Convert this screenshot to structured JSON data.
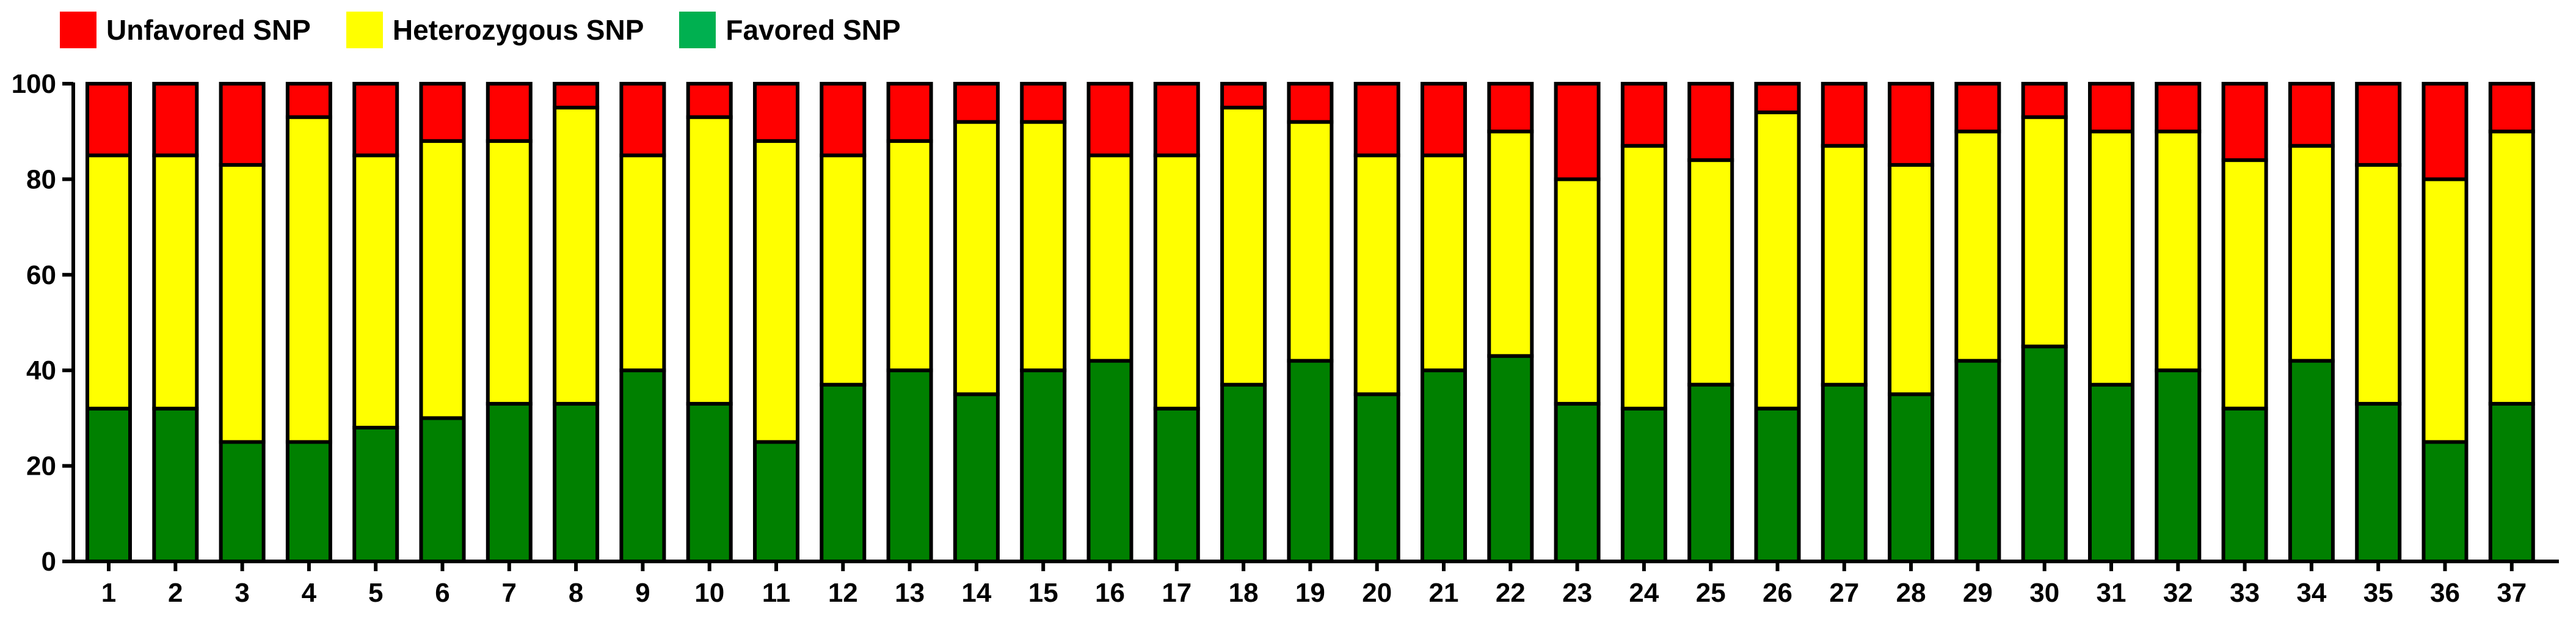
{
  "colors": {
    "unfavored": "#ff0000",
    "heterozygous": "#ffff00",
    "favored": "#008000",
    "favored_legend": "#00b050",
    "axis": "#000000"
  },
  "legend": {
    "items": [
      {
        "label": "Unfavored SNP",
        "color": "#ff0000"
      },
      {
        "label": "Heterozygous SNP",
        "color": "#ffff00"
      },
      {
        "label": "Favored SNP",
        "color": "#00b050"
      }
    ],
    "placement": "top-left"
  },
  "chart_data": {
    "type": "bar",
    "stacked": true,
    "title": "",
    "xlabel": "",
    "ylabel": "",
    "ylim": [
      0,
      100
    ],
    "yticks": [
      0,
      20,
      40,
      60,
      80,
      100
    ],
    "grid": false,
    "categories": [
      "1",
      "2",
      "3",
      "4",
      "5",
      "6",
      "7",
      "8",
      "9",
      "10",
      "11",
      "12",
      "13",
      "14",
      "15",
      "16",
      "17",
      "18",
      "19",
      "20",
      "21",
      "22",
      "23",
      "24",
      "25",
      "26",
      "27",
      "28",
      "29",
      "30",
      "31",
      "32",
      "33",
      "34",
      "35",
      "36",
      "37"
    ],
    "series": [
      {
        "name": "Favored SNP",
        "color": "#008000",
        "values": [
          32,
          32,
          25,
          25,
          28,
          30,
          33,
          33,
          40,
          33,
          25,
          37,
          40,
          35,
          40,
          42,
          32,
          37,
          42,
          35,
          40,
          43,
          33,
          32,
          37,
          32,
          37,
          35,
          42,
          45,
          37,
          40,
          32,
          42,
          33,
          25,
          33
        ]
      },
      {
        "name": "Heterozygous SNP",
        "color": "#ffff00",
        "values": [
          53,
          53,
          58,
          68,
          57,
          58,
          55,
          62,
          45,
          60,
          63,
          48,
          48,
          57,
          52,
          43,
          53,
          58,
          50,
          50,
          45,
          47,
          47,
          55,
          47,
          62,
          50,
          48,
          48,
          48,
          53,
          50,
          52,
          45,
          50,
          55,
          57
        ]
      },
      {
        "name": "Unfavored SNP",
        "color": "#ff0000",
        "values": [
          15,
          15,
          17,
          7,
          15,
          12,
          12,
          5,
          15,
          7,
          12,
          15,
          12,
          8,
          8,
          15,
          15,
          5,
          8,
          15,
          15,
          10,
          20,
          13,
          16,
          6,
          13,
          17,
          10,
          7,
          10,
          10,
          16,
          13,
          17,
          20,
          10
        ]
      }
    ]
  }
}
